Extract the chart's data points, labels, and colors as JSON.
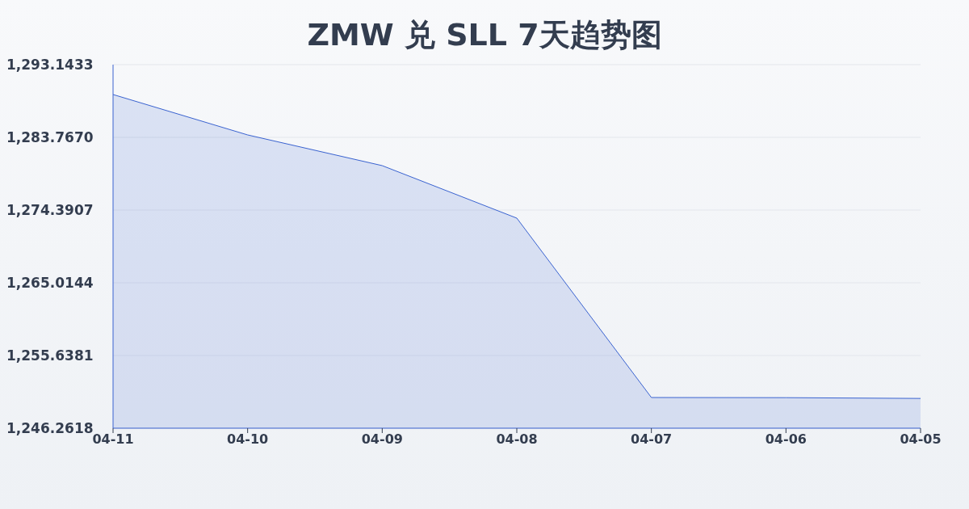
{
  "chart_data": {
    "type": "area",
    "title": "ZMW 兑 SLL 7天趋势图",
    "categories": [
      "04-11",
      "04-10",
      "04-09",
      "04-08",
      "04-07",
      "04-06",
      "04-05"
    ],
    "series": [
      {
        "color": "#3a63d0",
        "values": [
          1289.29,
          1284.08,
          1280.12,
          1273.35,
          1250.22,
          1250.2,
          1250.1
        ]
      }
    ],
    "ylim": [
      1246.2618,
      1293.1433
    ],
    "yticks": [
      {
        "value": 1246.2618,
        "label": "1,246.2618"
      },
      {
        "value": 1255.6381,
        "label": "1,255.6381"
      },
      {
        "value": 1265.0144,
        "label": "1,265.0144"
      },
      {
        "value": 1274.3907,
        "label": "1,274.3907"
      },
      {
        "value": 1283.767,
        "label": "1,283.7670"
      },
      {
        "value": 1293.1433,
        "label": "1,293.1433"
      }
    ],
    "grid": "y",
    "legend": false
  }
}
